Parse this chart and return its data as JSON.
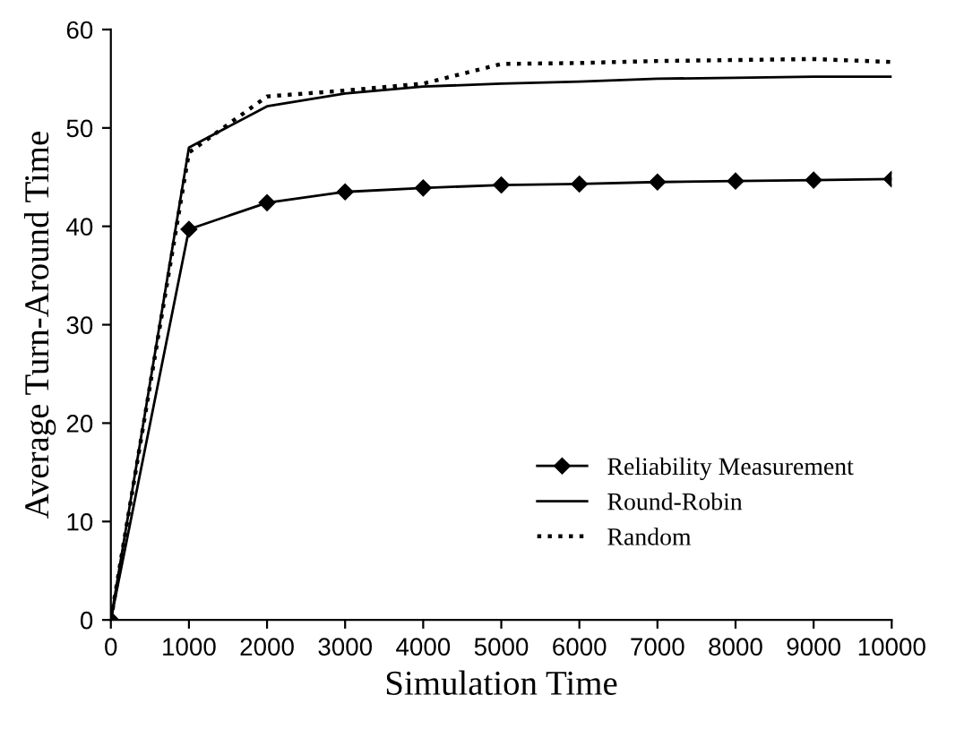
{
  "chart_data": {
    "type": "line",
    "xlabel": "Simulation Time",
    "ylabel": "Average Turn-Around Time",
    "x": [
      0,
      1000,
      2000,
      3000,
      4000,
      5000,
      6000,
      7000,
      8000,
      9000,
      10000
    ],
    "series": [
      {
        "name": "Reliability Measurement",
        "color": "#000000",
        "marker": "diamond",
        "line_style": "solid",
        "values": [
          0,
          39.7,
          42.4,
          43.5,
          43.9,
          44.2,
          44.3,
          44.5,
          44.6,
          44.7,
          44.8
        ]
      },
      {
        "name": "Round-Robin",
        "color": "#000000",
        "marker": "none",
        "line_style": "solid",
        "values": [
          0,
          48,
          52.2,
          53.5,
          54.2,
          54.5,
          54.7,
          55,
          55.1,
          55.2,
          55.2
        ]
      },
      {
        "name": "Random",
        "color": "#000000",
        "marker": "none",
        "line_style": "dotted",
        "values": [
          0,
          47.5,
          53.2,
          53.8,
          54.5,
          56.5,
          56.6,
          56.8,
          56.9,
          57,
          56.7
        ]
      }
    ],
    "xlim": [
      0,
      10000
    ],
    "ylim": [
      0,
      60
    ],
    "xticks": [
      0,
      1000,
      2000,
      3000,
      4000,
      5000,
      6000,
      7000,
      8000,
      9000,
      10000
    ],
    "yticks": [
      0,
      10,
      20,
      30,
      40,
      50,
      60
    ],
    "grid": false,
    "legend": "bottom right"
  }
}
